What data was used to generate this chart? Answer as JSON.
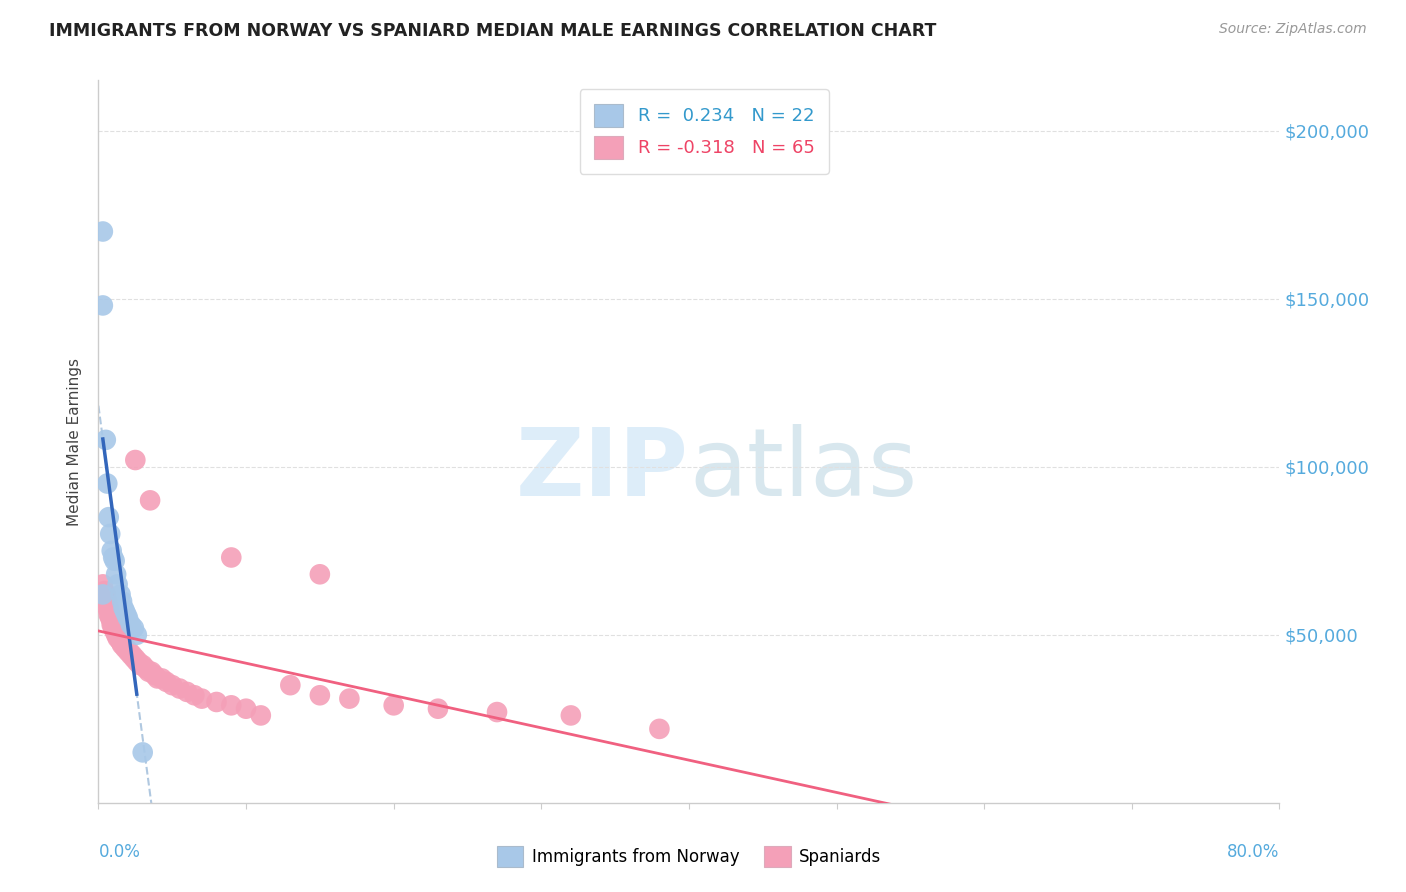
{
  "title": "IMMIGRANTS FROM NORWAY VS SPANIARD MEDIAN MALE EARNINGS CORRELATION CHART",
  "source": "Source: ZipAtlas.com",
  "ylabel": "Median Male Earnings",
  "ytick_labels": [
    "$50,000",
    "$100,000",
    "$150,000",
    "$200,000"
  ],
  "ytick_values": [
    50000,
    100000,
    150000,
    200000
  ],
  "ylim": [
    0,
    215000
  ],
  "xlim": [
    0.0,
    0.8
  ],
  "norway_color": "#a8c8e8",
  "spaniard_color": "#f4a0b8",
  "norway_line_color": "#3366bb",
  "spaniard_line_color": "#f06080",
  "norway_dash_color": "#b0c8e0",
  "background_color": "#ffffff",
  "grid_color": "#e0e0e0",
  "norway_x": [
    0.003,
    0.003,
    0.005,
    0.006,
    0.007,
    0.008,
    0.009,
    0.01,
    0.011,
    0.012,
    0.013,
    0.015,
    0.016,
    0.017,
    0.018,
    0.019,
    0.02,
    0.022,
    0.024,
    0.026,
    0.03,
    0.003
  ],
  "norway_y": [
    170000,
    148000,
    108000,
    95000,
    85000,
    80000,
    75000,
    73000,
    72000,
    68000,
    65000,
    62000,
    60000,
    58000,
    57000,
    56000,
    55000,
    53000,
    52000,
    50000,
    15000,
    62000
  ],
  "spaniard_x": [
    0.003,
    0.004,
    0.005,
    0.005,
    0.006,
    0.006,
    0.007,
    0.007,
    0.008,
    0.008,
    0.009,
    0.009,
    0.01,
    0.01,
    0.011,
    0.011,
    0.012,
    0.012,
    0.013,
    0.013,
    0.014,
    0.015,
    0.015,
    0.016,
    0.017,
    0.018,
    0.019,
    0.02,
    0.021,
    0.022,
    0.023,
    0.024,
    0.025,
    0.026,
    0.027,
    0.028,
    0.03,
    0.032,
    0.034,
    0.036,
    0.038,
    0.04,
    0.043,
    0.046,
    0.05,
    0.055,
    0.06,
    0.065,
    0.07,
    0.08,
    0.09,
    0.1,
    0.11,
    0.13,
    0.15,
    0.17,
    0.2,
    0.23,
    0.27,
    0.32,
    0.025,
    0.035,
    0.09,
    0.15,
    0.38
  ],
  "spaniard_y": [
    65000,
    63000,
    62000,
    60000,
    60000,
    58000,
    58000,
    56000,
    56000,
    55000,
    54000,
    53000,
    53000,
    52000,
    52000,
    51000,
    51000,
    50000,
    50000,
    49000,
    49000,
    48000,
    48000,
    47000,
    47000,
    46000,
    46000,
    45000,
    45000,
    44000,
    44000,
    43000,
    43000,
    42000,
    42000,
    41000,
    41000,
    40000,
    39000,
    39000,
    38000,
    37000,
    37000,
    36000,
    35000,
    34000,
    33000,
    32000,
    31000,
    30000,
    29000,
    28000,
    26000,
    35000,
    32000,
    31000,
    29000,
    28000,
    27000,
    26000,
    102000,
    90000,
    73000,
    68000,
    22000
  ],
  "legend_norway_text": "R =  0.234   N = 22",
  "legend_spaniard_text": "R = -0.318   N = 65",
  "legend_bottom_norway": "Immigrants from Norway",
  "legend_bottom_spaniard": "Spaniards"
}
